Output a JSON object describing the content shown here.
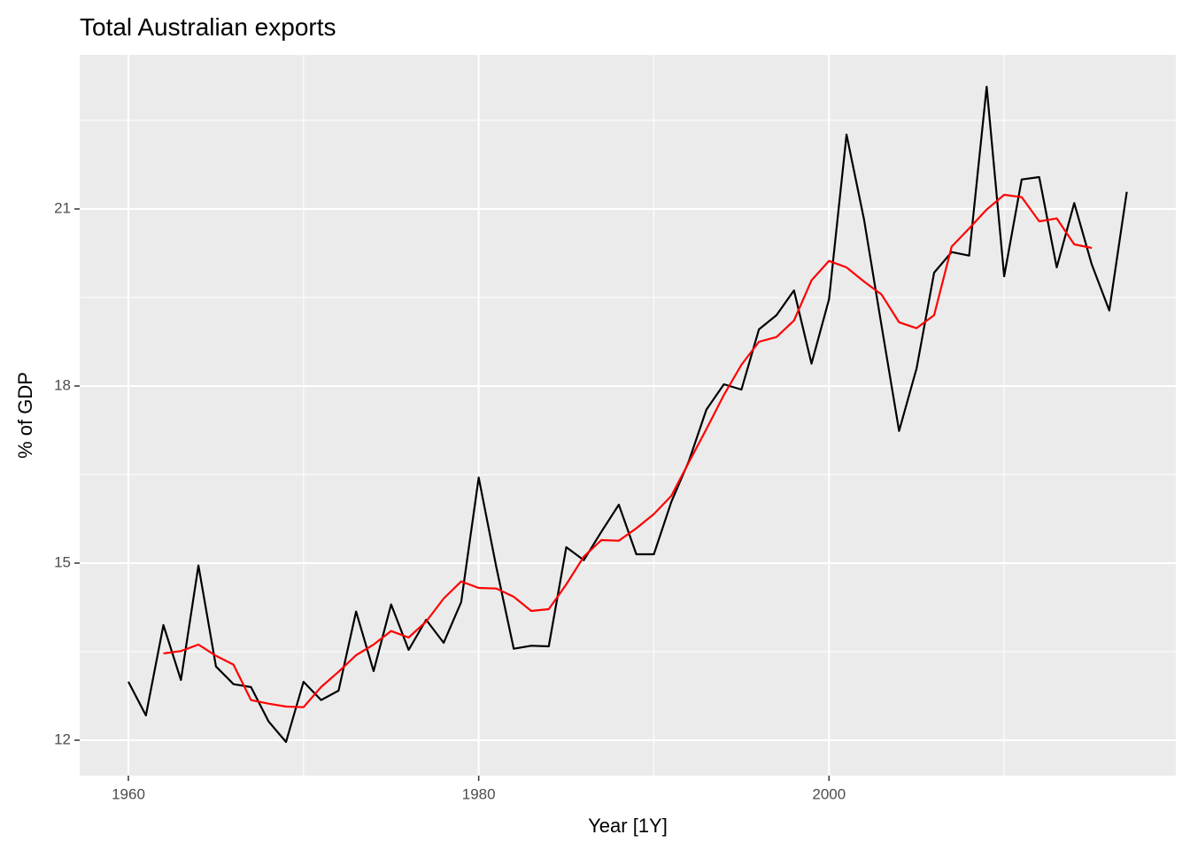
{
  "chart_data": {
    "type": "line",
    "title": "Total Australian exports",
    "xlabel": "Year [1Y]",
    "ylabel": "% of GDP",
    "x": [
      1960,
      1961,
      1962,
      1963,
      1964,
      1965,
      1966,
      1967,
      1968,
      1969,
      1970,
      1971,
      1972,
      1973,
      1974,
      1975,
      1976,
      1977,
      1978,
      1979,
      1980,
      1981,
      1982,
      1983,
      1984,
      1985,
      1986,
      1987,
      1988,
      1989,
      1990,
      1991,
      1992,
      1993,
      1994,
      1995,
      1996,
      1997,
      1998,
      1999,
      2000,
      2001,
      2002,
      2003,
      2004,
      2005,
      2006,
      2007,
      2008,
      2009,
      2010,
      2011,
      2012,
      2013,
      2014,
      2015,
      2016,
      2017
    ],
    "series": [
      {
        "color": "#000000",
        "values": [
          12.99,
          12.42,
          13.95,
          13.02,
          14.96,
          13.25,
          12.95,
          12.9,
          12.32,
          11.97,
          12.99,
          12.68,
          12.84,
          14.18,
          13.17,
          14.3,
          13.53,
          14.04,
          13.65,
          14.34,
          16.45,
          14.94,
          13.55,
          13.6,
          13.59,
          15.27,
          15.05,
          15.53,
          15.99,
          15.15,
          15.15,
          16.04,
          16.73,
          17.6,
          18.03,
          17.94,
          18.96,
          19.2,
          19.62,
          18.38,
          19.47,
          22.26,
          20.82,
          19.02,
          17.24,
          18.3,
          19.92,
          20.27,
          20.21,
          23.07,
          19.86,
          21.5,
          21.54,
          20.01,
          21.1,
          20.06,
          19.28,
          21.29
        ]
      },
      {
        "color": "#ff0000",
        "values": [
          null,
          null,
          13.47,
          13.51,
          13.62,
          13.43,
          13.28,
          12.68,
          12.62,
          12.57,
          12.56,
          12.9,
          13.16,
          13.44,
          13.62,
          13.85,
          13.74,
          14.01,
          14.4,
          14.69,
          14.58,
          14.57,
          14.43,
          14.19,
          14.22,
          14.64,
          15.11,
          15.39,
          15.38,
          15.59,
          15.83,
          16.14,
          16.71,
          17.27,
          17.85,
          18.36,
          18.75,
          18.83,
          19.11,
          19.79,
          20.12,
          20.01,
          19.77,
          19.55,
          19.08,
          18.98,
          19.2,
          20.36,
          20.67,
          20.99,
          21.24,
          21.2,
          20.79,
          20.84,
          20.4,
          20.34,
          null,
          null
        ]
      }
    ],
    "xlim": [
      1957.22,
      2019.8
    ],
    "ylim": [
      11.4,
      23.61
    ],
    "xticks": [
      1960,
      1980,
      2000
    ],
    "yticks": [
      12,
      15,
      18,
      21
    ],
    "xminor_ticks": [
      1970,
      1990,
      2010
    ],
    "yminor_ticks": [
      13.5,
      16.5,
      19.5,
      22.5
    ],
    "grid": true,
    "background": "#ebebeb"
  }
}
